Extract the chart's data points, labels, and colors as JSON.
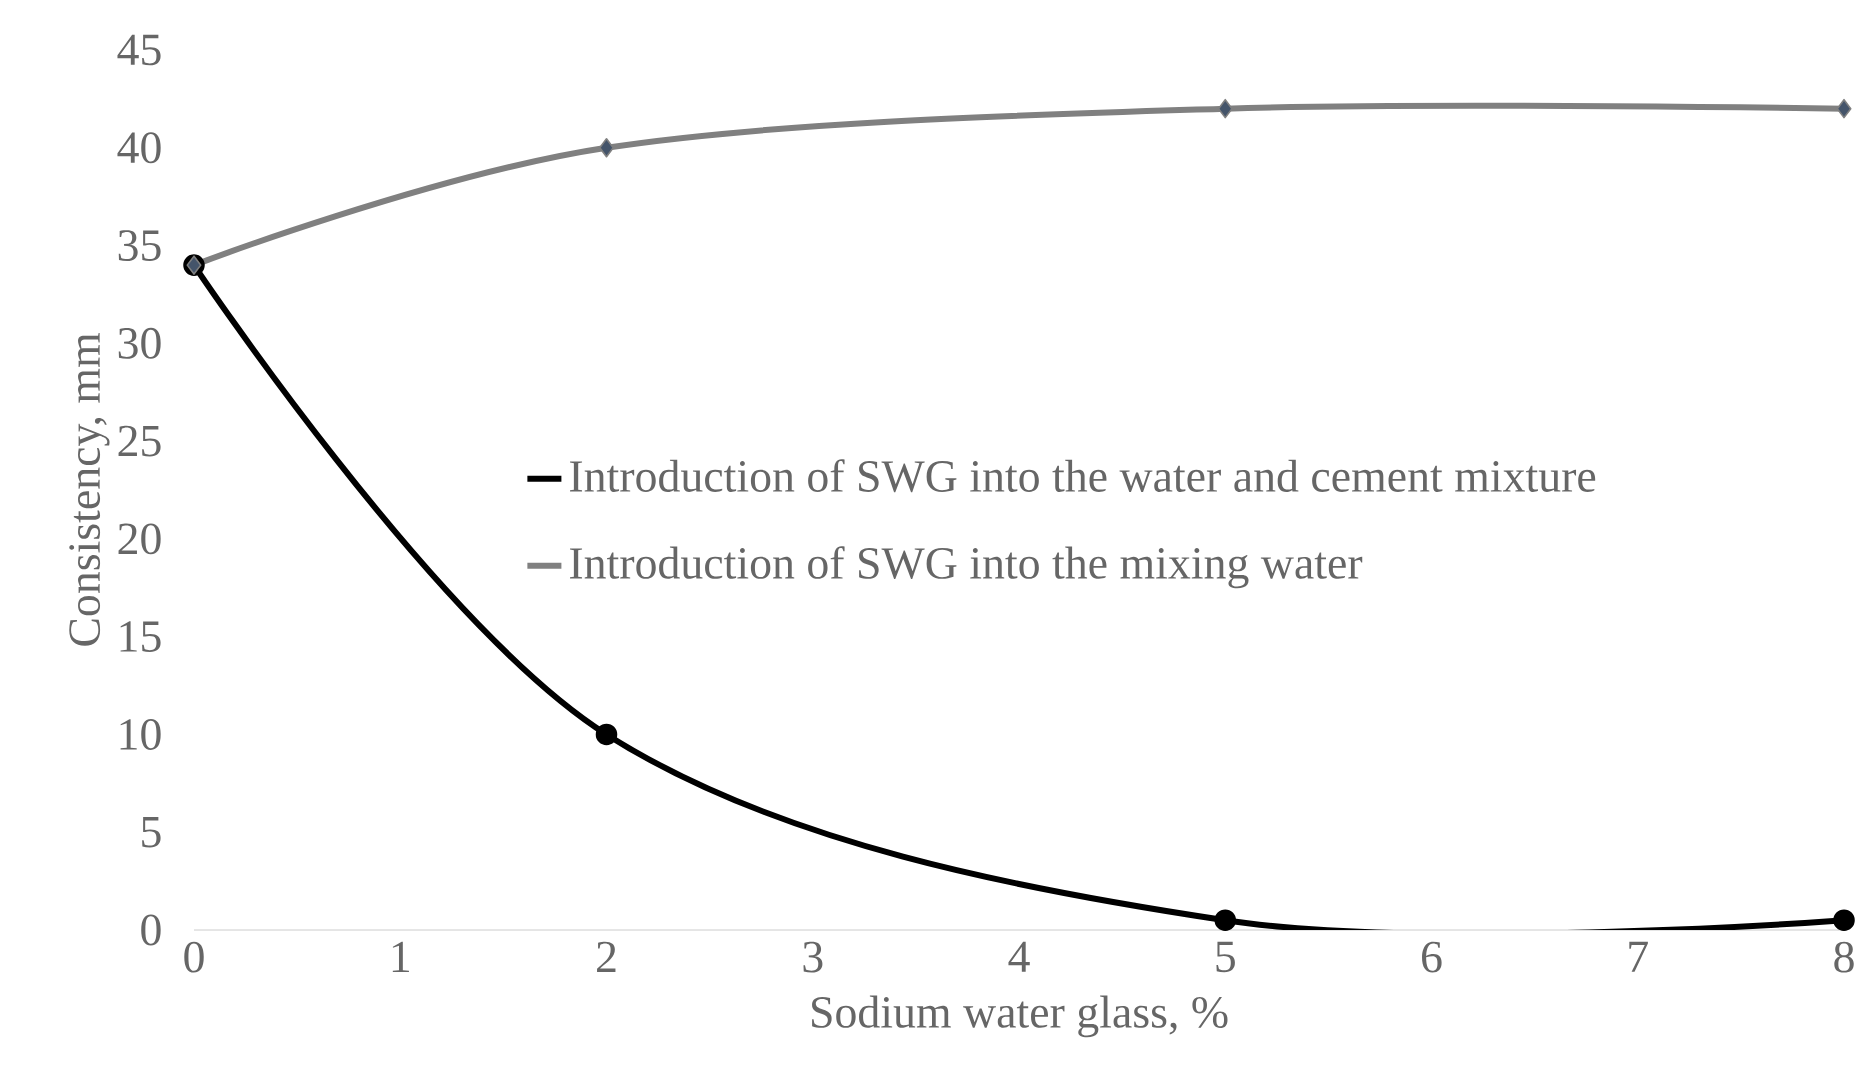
{
  "chart_data": {
    "type": "line",
    "xlabel": "Sodium water glass, %",
    "ylabel": "Consistency, mm",
    "x": [
      0,
      2,
      5,
      8
    ],
    "series": [
      {
        "name": "Introduction of SWG into the water and cement mixture",
        "color": "#000000",
        "marker": "circle",
        "values": [
          34,
          10,
          0.5,
          0.5
        ]
      },
      {
        "name": "Introduction of SWG into the mixing water",
        "color": "#808080",
        "marker": "diamond",
        "values": [
          34,
          40,
          42,
          42
        ]
      }
    ],
    "xlim": [
      0,
      8
    ],
    "xticks": [
      0,
      1,
      2,
      3,
      4,
      5,
      6,
      7,
      8
    ],
    "ylim": [
      0,
      45
    ],
    "yticks": [
      0,
      5,
      10,
      15,
      20,
      25,
      30,
      35,
      40,
      45
    ],
    "legend": "center right",
    "line_style": "solid"
  }
}
